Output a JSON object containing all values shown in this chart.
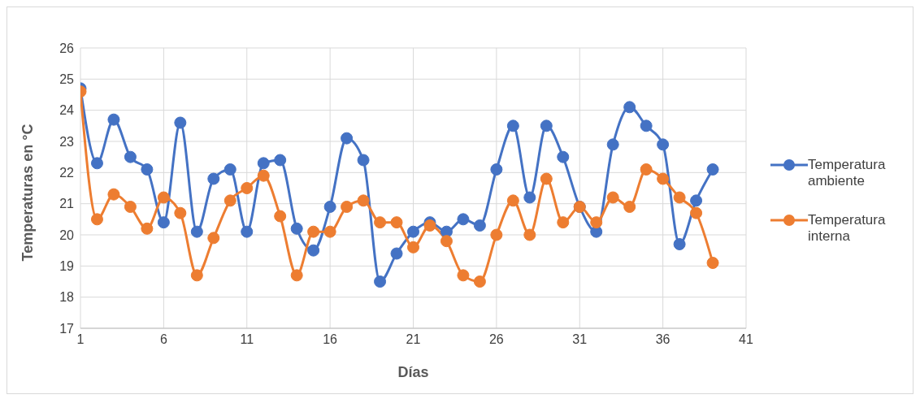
{
  "chart_data": {
    "type": "line",
    "xlabel": "Días",
    "ylabel": "Temperaturas en °C",
    "x": [
      1,
      2,
      3,
      4,
      5,
      6,
      7,
      8,
      9,
      10,
      11,
      12,
      13,
      14,
      15,
      16,
      17,
      18,
      19,
      20,
      21,
      22,
      23,
      24,
      25,
      26,
      27,
      28,
      29,
      30,
      31,
      32,
      33,
      34,
      35,
      36,
      37,
      38,
      39
    ],
    "series": [
      {
        "name": "Temperatura ambiente",
        "color": "#4472c4",
        "values": [
          24.7,
          22.3,
          23.7,
          22.5,
          22.1,
          20.4,
          23.6,
          20.1,
          21.8,
          22.1,
          20.1,
          22.3,
          22.4,
          20.2,
          19.5,
          20.9,
          23.1,
          22.4,
          18.5,
          19.4,
          20.1,
          20.4,
          20.1,
          20.5,
          20.3,
          22.1,
          23.5,
          21.2,
          23.5,
          22.5,
          20.9,
          20.1,
          22.9,
          24.1,
          23.5,
          22.9,
          19.7,
          21.1,
          22.1
        ]
      },
      {
        "name": "Temperatura interna",
        "color": "#ed7d31",
        "values": [
          24.6,
          20.5,
          21.3,
          20.9,
          20.2,
          21.2,
          20.7,
          18.7,
          19.9,
          21.1,
          21.5,
          21.9,
          20.6,
          18.7,
          20.1,
          20.1,
          20.9,
          21.1,
          20.4,
          20.4,
          19.6,
          20.3,
          19.8,
          18.7,
          18.5,
          20.0,
          21.1,
          20.0,
          21.8,
          20.4,
          20.9,
          20.4,
          21.2,
          20.9,
          22.1,
          21.8,
          21.2,
          20.7,
          19.1
        ]
      }
    ],
    "xlim": [
      1,
      41
    ],
    "xticks": [
      1,
      6,
      11,
      16,
      21,
      26,
      31,
      36,
      41
    ],
    "ylim": [
      17,
      26
    ],
    "yticks": [
      17,
      18,
      19,
      20,
      21,
      22,
      23,
      24,
      25,
      26
    ],
    "grid": true,
    "legend": "right",
    "marker": "circle",
    "line_style": "solid"
  }
}
